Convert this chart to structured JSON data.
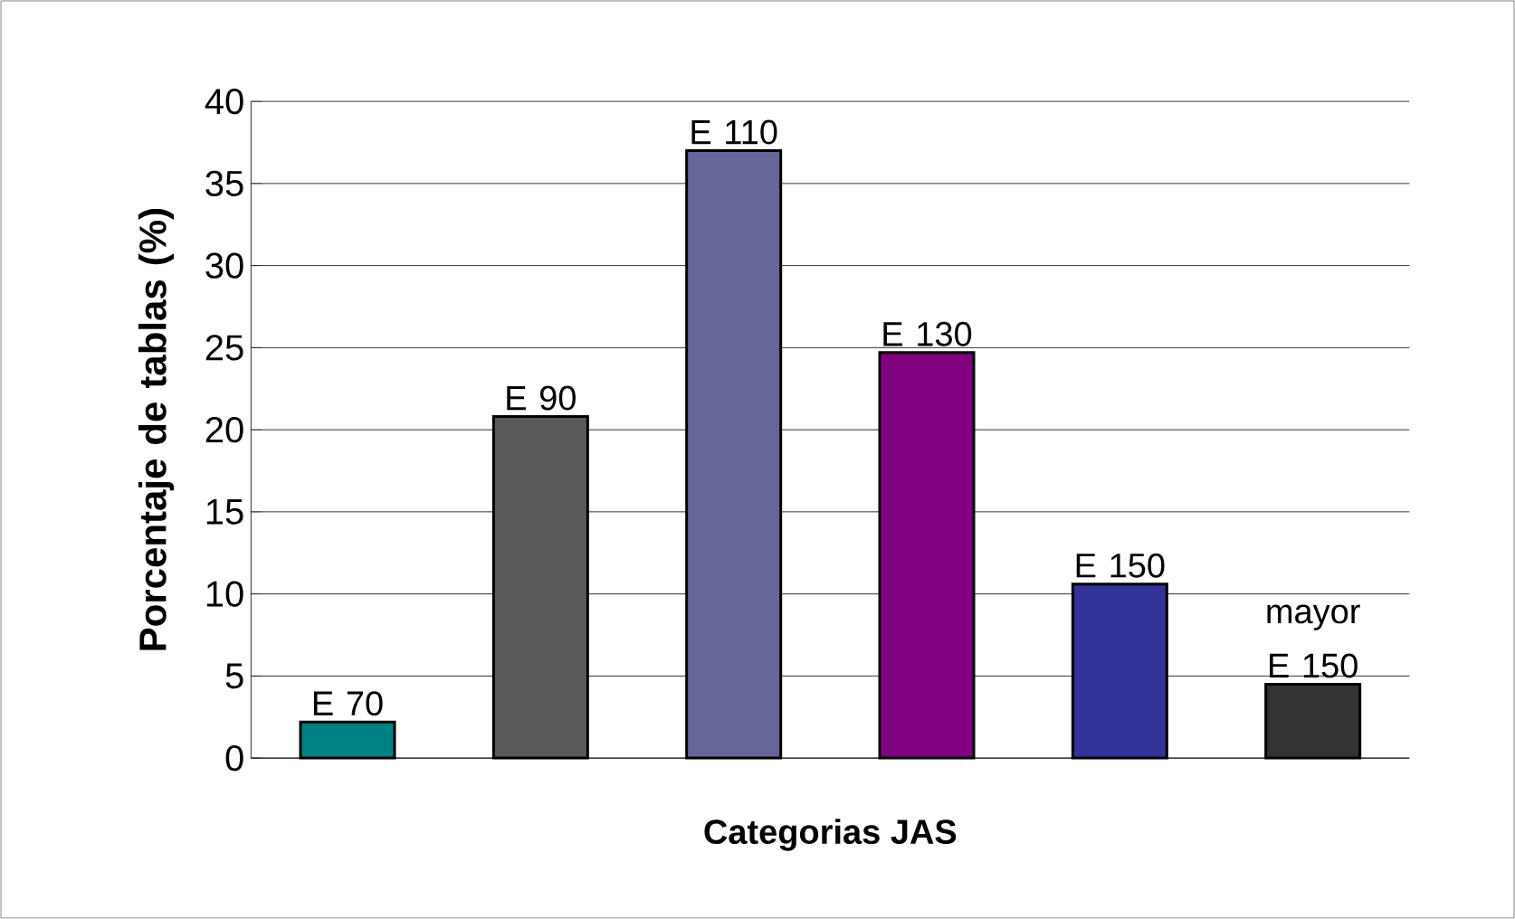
{
  "chart_data": {
    "type": "bar",
    "xlabel": "Categorias JAS",
    "ylabel": "Porcentaje de tablas (%)",
    "categories": [
      "E 70",
      "E 90",
      "E 110",
      "E 130",
      "E 150",
      "mayor E 150"
    ],
    "values": [
      2.2,
      20.8,
      37.0,
      24.7,
      10.6,
      4.5
    ],
    "colors": [
      "#008080",
      "#5a5a5a",
      "#666699",
      "#800080",
      "#333399",
      "#333333"
    ],
    "ylim": [
      0,
      40
    ],
    "yticks": [
      0,
      5,
      10,
      15,
      20,
      25,
      30,
      35,
      40
    ],
    "grid": "y",
    "tick_labels": "y"
  }
}
